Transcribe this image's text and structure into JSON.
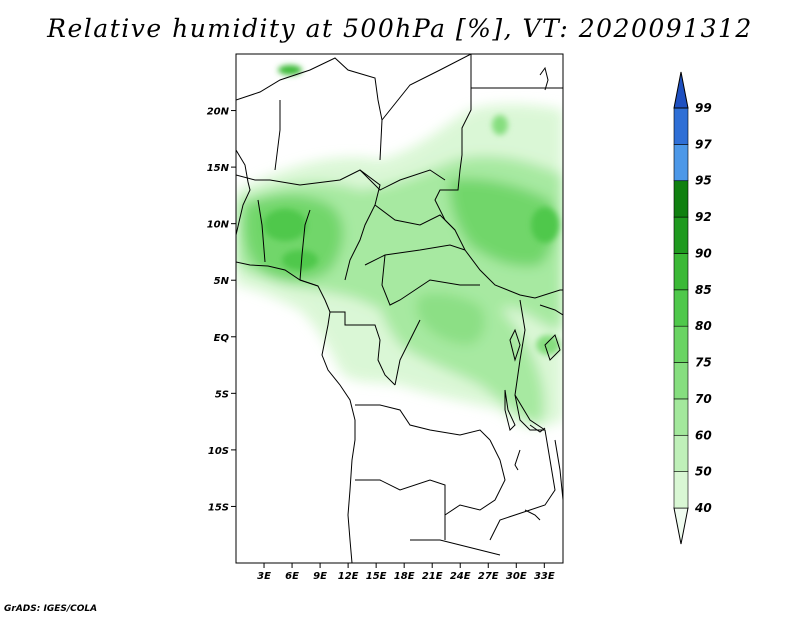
{
  "title": "Relative humidity at 500hPa [%], VT: 2020091312",
  "credit": "GrADS: IGES/COLA",
  "map": {
    "lat_ticks": [
      "20N",
      "15N",
      "10N",
      "5N",
      "EQ",
      "5S",
      "10S",
      "15S"
    ],
    "lon_ticks": [
      "3E",
      "6E",
      "9E",
      "12E",
      "15E",
      "18E",
      "21E",
      "24E",
      "27E",
      "30E",
      "33E"
    ],
    "extent": {
      "lon_min": 0,
      "lon_max": 35,
      "lat_min": -20,
      "lat_max": 25
    }
  },
  "colorbar": {
    "labels": [
      "40",
      "50",
      "60",
      "70",
      "75",
      "80",
      "85",
      "90",
      "92",
      "95",
      "97",
      "99"
    ],
    "colors": [
      "#f0fcf0",
      "#d9f7d4",
      "#bff0b9",
      "#a3e89c",
      "#86de7f",
      "#6ad463",
      "#4fc84b",
      "#3bb936",
      "#1f9a1f",
      "#108010",
      "#4d98e8",
      "#2f6fd6",
      "#1e50c0"
    ]
  }
}
